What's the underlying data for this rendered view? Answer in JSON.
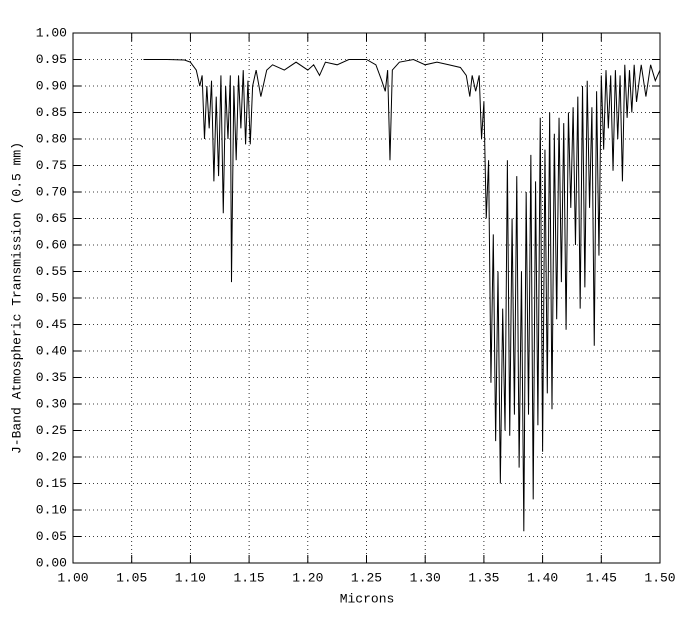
{
  "chart_data": {
    "type": "line",
    "grid": true,
    "xlabel": "Microns",
    "ylabel": "J-Band Atmospheric Transmission (0.5 mm)",
    "xlim": [
      1.0,
      1.5
    ],
    "ylim": [
      0,
      1.0
    ],
    "xticks": [
      {
        "value": 1.0,
        "label": "1.00"
      },
      1.05,
      {
        "value": 1.1,
        "label": "1.10"
      },
      1.15,
      {
        "value": 1.2,
        "label": "1.20"
      },
      1.25,
      {
        "value": 1.3,
        "label": "1.30"
      },
      1.35,
      {
        "value": 1.4,
        "label": "1.40"
      },
      1.45,
      {
        "value": 1.5,
        "label": "1.50"
      }
    ],
    "yticks": [
      {
        "value": 0,
        "label": "0.00"
      },
      0.05,
      {
        "value": 0.1,
        "label": "0.10"
      },
      0.15,
      {
        "value": 0.2,
        "label": "0.20"
      },
      0.25,
      {
        "value": 0.3,
        "label": "0.30"
      },
      0.35,
      {
        "value": 0.4,
        "label": "0.40"
      },
      0.45,
      {
        "value": 0.5,
        "label": "0.50"
      },
      0.55,
      {
        "value": 0.6,
        "label": "0.60"
      },
      0.65,
      {
        "value": 0.7,
        "label": "0.70"
      },
      0.75,
      {
        "value": 0.8,
        "label": "0.80"
      },
      0.85,
      {
        "value": 0.9,
        "label": "0.90"
      },
      0.95,
      {
        "value": 1.0,
        "label": "1.00"
      }
    ],
    "series": [
      {
        "color": "#000000",
        "x": [
          1.06,
          1.08,
          1.095,
          1.1,
          1.105,
          1.108,
          1.11,
          1.112,
          1.114,
          1.116,
          1.118,
          1.12,
          1.122,
          1.124,
          1.126,
          1.128,
          1.13,
          1.132,
          1.134,
          1.135,
          1.137,
          1.139,
          1.141,
          1.143,
          1.145,
          1.147,
          1.149,
          1.151,
          1.153,
          1.156,
          1.16,
          1.165,
          1.17,
          1.18,
          1.19,
          1.2,
          1.205,
          1.21,
          1.215,
          1.225,
          1.235,
          1.25,
          1.258,
          1.263,
          1.266,
          1.268,
          1.27,
          1.272,
          1.278,
          1.29,
          1.3,
          1.31,
          1.32,
          1.33,
          1.335,
          1.338,
          1.34,
          1.343,
          1.346,
          1.348,
          1.35,
          1.352,
          1.354,
          1.356,
          1.358,
          1.36,
          1.362,
          1.364,
          1.366,
          1.368,
          1.37,
          1.372,
          1.374,
          1.376,
          1.378,
          1.38,
          1.382,
          1.384,
          1.386,
          1.388,
          1.39,
          1.392,
          1.394,
          1.396,
          1.398,
          1.4,
          1.402,
          1.404,
          1.406,
          1.408,
          1.41,
          1.412,
          1.414,
          1.416,
          1.418,
          1.42,
          1.422,
          1.424,
          1.426,
          1.428,
          1.43,
          1.432,
          1.434,
          1.436,
          1.438,
          1.44,
          1.442,
          1.444,
          1.446,
          1.448,
          1.45,
          1.452,
          1.454,
          1.456,
          1.458,
          1.46,
          1.462,
          1.464,
          1.466,
          1.468,
          1.47,
          1.472,
          1.474,
          1.476,
          1.478,
          1.48,
          1.484,
          1.488,
          1.492,
          1.496,
          1.5
        ],
        "values": [
          0.95,
          0.95,
          0.949,
          0.945,
          0.93,
          0.9,
          0.92,
          0.8,
          0.9,
          0.82,
          0.91,
          0.72,
          0.88,
          0.73,
          0.92,
          0.66,
          0.9,
          0.8,
          0.92,
          0.53,
          0.9,
          0.76,
          0.92,
          0.82,
          0.93,
          0.79,
          0.91,
          0.79,
          0.9,
          0.93,
          0.88,
          0.93,
          0.94,
          0.93,
          0.945,
          0.93,
          0.94,
          0.92,
          0.945,
          0.94,
          0.95,
          0.95,
          0.94,
          0.91,
          0.89,
          0.93,
          0.76,
          0.93,
          0.945,
          0.95,
          0.94,
          0.945,
          0.94,
          0.935,
          0.92,
          0.88,
          0.92,
          0.89,
          0.92,
          0.8,
          0.87,
          0.65,
          0.76,
          0.34,
          0.62,
          0.23,
          0.55,
          0.15,
          0.48,
          0.25,
          0.76,
          0.24,
          0.65,
          0.28,
          0.73,
          0.18,
          0.55,
          0.06,
          0.7,
          0.28,
          0.77,
          0.12,
          0.72,
          0.26,
          0.84,
          0.21,
          0.78,
          0.32,
          0.85,
          0.29,
          0.81,
          0.46,
          0.84,
          0.53,
          0.83,
          0.44,
          0.85,
          0.67,
          0.86,
          0.6,
          0.88,
          0.48,
          0.9,
          0.52,
          0.91,
          0.67,
          0.86,
          0.41,
          0.89,
          0.58,
          0.92,
          0.78,
          0.93,
          0.82,
          0.92,
          0.74,
          0.93,
          0.8,
          0.92,
          0.72,
          0.94,
          0.84,
          0.93,
          0.85,
          0.94,
          0.87,
          0.94,
          0.88,
          0.94,
          0.91,
          0.93
        ]
      }
    ]
  }
}
